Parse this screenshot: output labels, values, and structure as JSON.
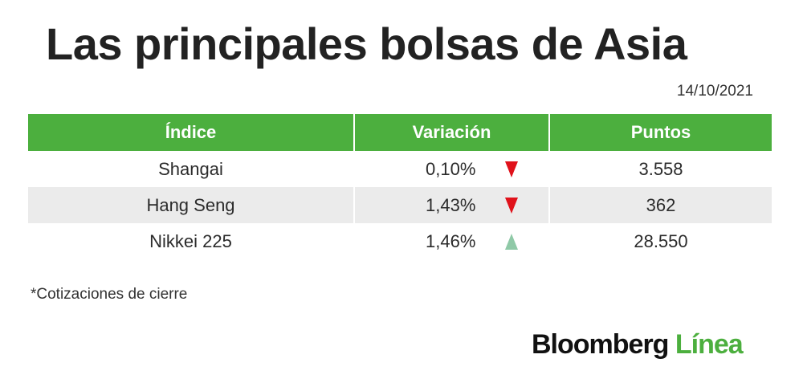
{
  "title": "Las principales bolsas de Asia",
  "date": "14/10/2021",
  "table": {
    "headers": [
      "Índice",
      "Variación",
      "Puntos"
    ],
    "rows": [
      {
        "index": "Shangai",
        "variation": "0,10%",
        "direction": "down",
        "points": "3.558"
      },
      {
        "index": "Hang Seng",
        "variation": "1,43%",
        "direction": "down",
        "points": "362"
      },
      {
        "index": "Nikkei 225",
        "variation": "1,46%",
        "direction": "up",
        "points": "28.550"
      }
    ]
  },
  "note": "*Cotizaciones de cierre",
  "logo": {
    "part1": "Bloomberg",
    "part2": "Línea"
  },
  "colors": {
    "header_bg": "#4caf3e",
    "arrow_down": "#e0121b",
    "arrow_up": "#8fc9a7",
    "row_shade": "#ebebeb"
  }
}
